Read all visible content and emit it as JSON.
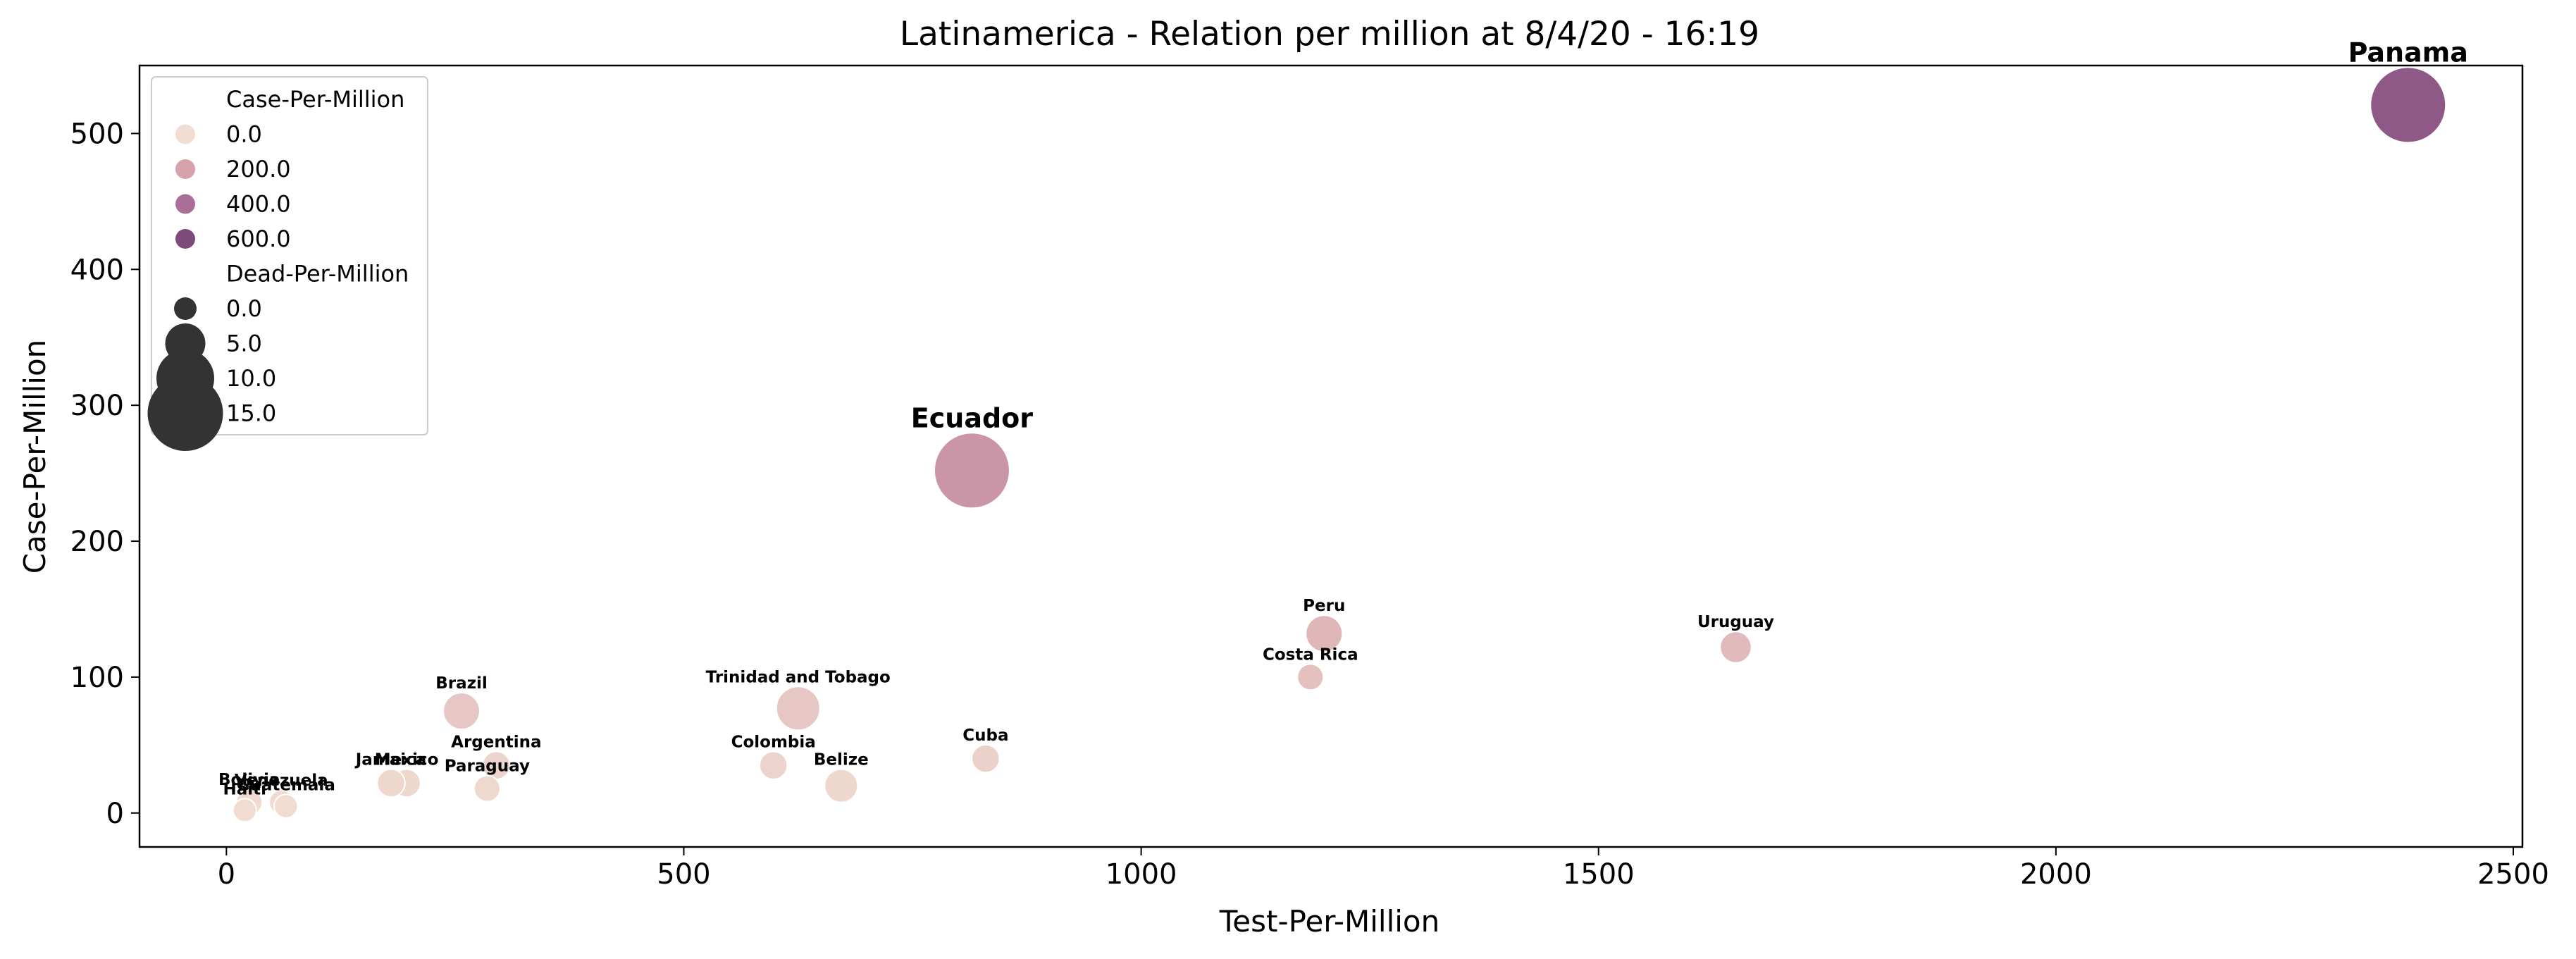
{
  "chart_data": {
    "type": "scatter",
    "title": "Latinamerica - Relation per million at 8/4/20 - 16:19",
    "xlabel": "Test-Per-Million",
    "ylabel": "Case-Per-Million",
    "xlim": [
      -95,
      2510
    ],
    "ylim": [
      -25,
      550
    ],
    "x_ticks": [
      0,
      500,
      1000,
      1500,
      2000,
      2500
    ],
    "y_ticks": [
      0,
      100,
      200,
      300,
      400,
      500
    ],
    "grid": false,
    "legend": {
      "placement": "top-left",
      "hue_title": "Case-Per-Million",
      "hue_entries": [
        {
          "label": "0.0",
          "color": "#f1ddd1"
        },
        {
          "label": "200.0",
          "color": "#d6a3ad"
        },
        {
          "label": "400.0",
          "color": "#aa6f99"
        },
        {
          "label": "600.0",
          "color": "#7c4a7b"
        }
      ],
      "size_title": "Dead-Per-Million",
      "size_entries": [
        {
          "label": "0.0",
          "value": 0
        },
        {
          "label": "5.0",
          "value": 5
        },
        {
          "label": "10.0",
          "value": 10
        },
        {
          "label": "15.0",
          "value": 15
        }
      ]
    },
    "points": [
      {
        "country": "Panama",
        "x": 2385,
        "y": 521,
        "dead": 15,
        "label": "Panama",
        "label_style": "highlight-blue"
      },
      {
        "country": "Ecuador",
        "x": 815,
        "y": 252,
        "dead": 15,
        "label": "Ecuador",
        "label_style": "highlight-black"
      },
      {
        "country": "Peru",
        "x": 1200,
        "y": 132,
        "dead": 4,
        "label": "Peru",
        "label_style": "normal"
      },
      {
        "country": "Costa Rica",
        "x": 1185,
        "y": 100,
        "dead": 1,
        "label": "Costa Rica",
        "label_style": "normal"
      },
      {
        "country": "Uruguay",
        "x": 1650,
        "y": 122,
        "dead": 2.5,
        "label": "Uruguay",
        "label_style": "normal"
      },
      {
        "country": "Brazil",
        "x": 257,
        "y": 75,
        "dead": 4,
        "label": "Brazil",
        "label_style": "normal"
      },
      {
        "country": "Trinidad and Tobago",
        "x": 625,
        "y": 77,
        "dead": 6,
        "label": "Trinidad and Tobago",
        "label_style": "normal"
      },
      {
        "country": "Argentina",
        "x": 295,
        "y": 35,
        "dead": 1.5,
        "label": "Argentina",
        "label_style": "normal"
      },
      {
        "country": "Colombia",
        "x": 598,
        "y": 35,
        "dead": 1.5,
        "label": "Colombia",
        "label_style": "normal"
      },
      {
        "country": "Cuba",
        "x": 830,
        "y": 40,
        "dead": 1.5,
        "label": "Cuba",
        "label_style": "normal"
      },
      {
        "country": "Belize",
        "x": 672,
        "y": 20,
        "dead": 3,
        "label": "Belize",
        "label_style": "normal"
      },
      {
        "country": "Mexico",
        "x": 197,
        "y": 22,
        "dead": 1.5,
        "label": "Mexico",
        "label_style": "normal"
      },
      {
        "country": "Jamaica",
        "x": 180,
        "y": 22,
        "dead": 1.5,
        "label": "Jamaica",
        "label_style": "normal"
      },
      {
        "country": "Paraguay",
        "x": 285,
        "y": 18,
        "dead": 1,
        "label": "Paraguay",
        "label_style": "normal"
      },
      {
        "country": "Bolivia",
        "x": 25,
        "y": 8,
        "dead": 1,
        "label": "Bolivia",
        "label_style": "normal"
      },
      {
        "country": "Venezuela",
        "x": 60,
        "y": 8,
        "dead": 0.5,
        "label": "Venezuela",
        "label_style": "normal"
      },
      {
        "country": "Guatemala",
        "x": 65,
        "y": 5,
        "dead": 0.3,
        "label": "Guatemala",
        "label_style": "normal"
      },
      {
        "country": "Haiti",
        "x": 20,
        "y": 2,
        "dead": 0.2,
        "label": "Haiti",
        "label_style": "normal"
      }
    ]
  }
}
